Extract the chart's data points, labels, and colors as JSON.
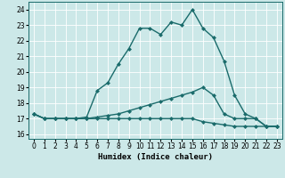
{
  "xlabel": "Humidex (Indice chaleur)",
  "background_color": "#cce8e8",
  "grid_color": "#b0d4d4",
  "line_color": "#1a6b6b",
  "x_values": [
    0,
    1,
    2,
    3,
    4,
    5,
    6,
    7,
    8,
    9,
    10,
    11,
    12,
    13,
    14,
    15,
    16,
    17,
    18,
    19,
    20,
    21,
    22,
    23
  ],
  "line1_y": [
    17.3,
    17.0,
    17.0,
    17.0,
    17.0,
    17.0,
    17.0,
    17.0,
    17.0,
    17.0,
    17.0,
    17.0,
    17.0,
    17.0,
    17.0,
    17.0,
    16.8,
    16.7,
    16.6,
    16.5,
    16.5,
    16.5,
    16.5,
    16.5
  ],
  "line2_y": [
    17.3,
    17.0,
    17.0,
    17.0,
    17.0,
    17.0,
    17.1,
    17.2,
    17.3,
    17.5,
    17.7,
    17.9,
    18.1,
    18.3,
    18.5,
    18.7,
    19.0,
    18.5,
    17.3,
    17.0,
    17.0,
    17.0,
    16.5,
    16.5
  ],
  "line3_y": [
    17.3,
    17.0,
    17.0,
    17.0,
    17.0,
    17.1,
    18.8,
    19.3,
    20.5,
    21.5,
    22.8,
    22.8,
    22.4,
    23.2,
    23.0,
    24.0,
    22.8,
    22.2,
    20.7,
    18.5,
    17.3,
    17.0,
    16.5,
    16.5
  ],
  "ylim": [
    15.7,
    24.5
  ],
  "yticks": [
    16,
    17,
    18,
    19,
    20,
    21,
    22,
    23,
    24
  ],
  "xlim": [
    -0.5,
    23.5
  ],
  "xticks": [
    0,
    1,
    2,
    3,
    4,
    5,
    6,
    7,
    8,
    9,
    10,
    11,
    12,
    13,
    14,
    15,
    16,
    17,
    18,
    19,
    20,
    21,
    22,
    23
  ],
  "tick_fontsize": 5.5,
  "label_fontsize": 6.5,
  "marker_size": 2.5,
  "line_width": 1.0
}
